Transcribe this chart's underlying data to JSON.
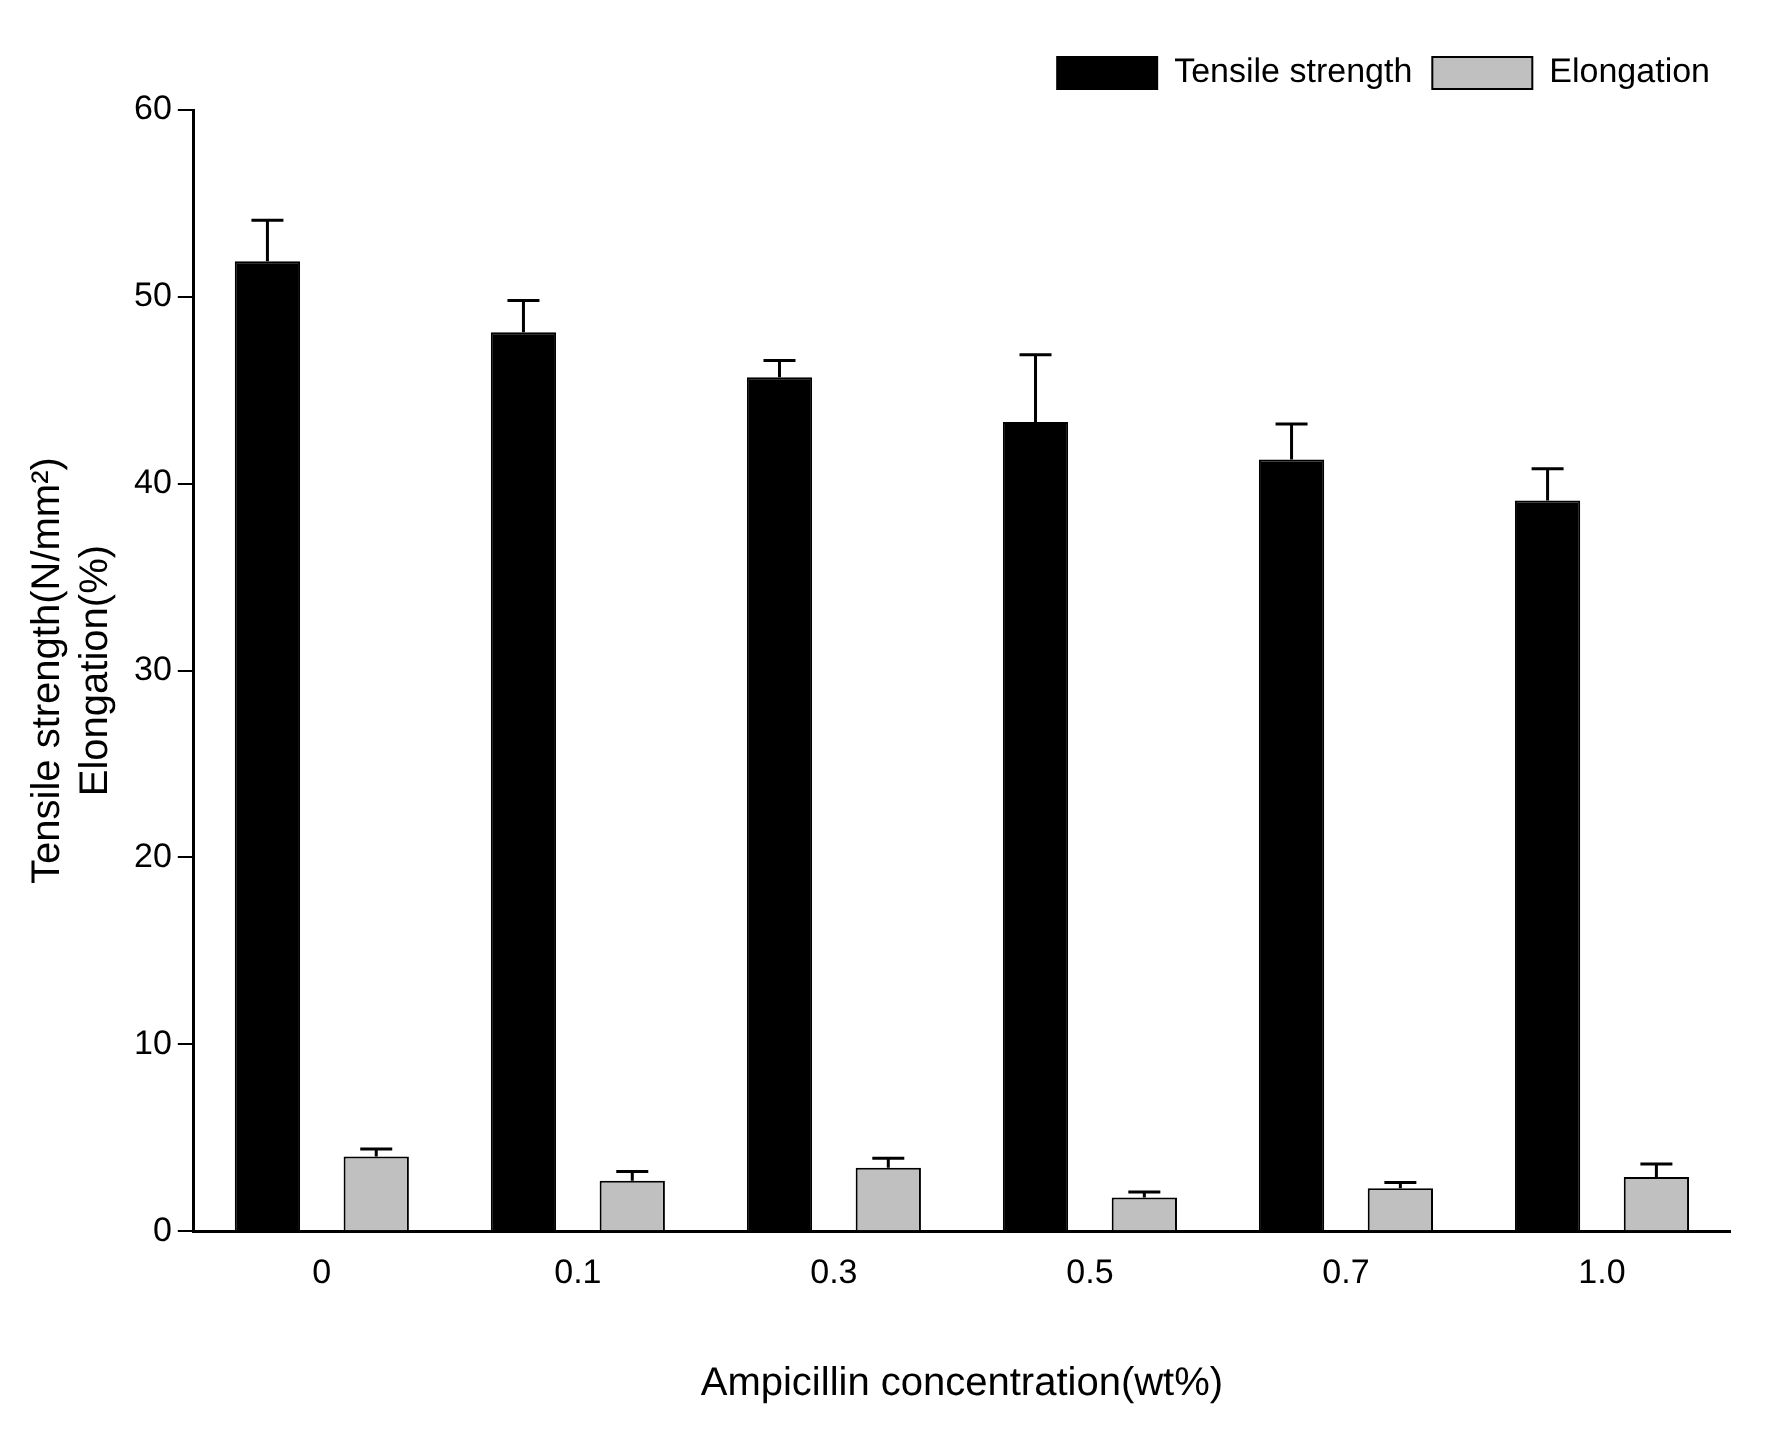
{
  "chart_data": {
    "type": "bar",
    "xlabel": "Ampicillin concentration(wt%)",
    "ylabel": "Tensile strength(N/mm²)\nElongation(%)",
    "categories": [
      "0",
      "0.1",
      "0.3",
      "0.5",
      "0.7",
      "1.0"
    ],
    "series": [
      {
        "name": "Tensile strength",
        "color": "#000000",
        "values": [
          51.9,
          48.1,
          45.7,
          43.3,
          41.3,
          39.1
        ],
        "errors": [
          2.2,
          1.7,
          0.9,
          3.6,
          1.9,
          1.7
        ]
      },
      {
        "name": "Elongation",
        "color": "#c0c0c0",
        "values": [
          4.0,
          2.7,
          3.4,
          1.8,
          2.3,
          2.9
        ],
        "errors": [
          0.4,
          0.5,
          0.5,
          0.3,
          0.3,
          0.7
        ]
      }
    ],
    "ylim": [
      0,
      60
    ],
    "yticks": [
      0,
      10,
      20,
      30,
      40,
      50,
      60
    ],
    "grid": false,
    "legend": "top right"
  }
}
